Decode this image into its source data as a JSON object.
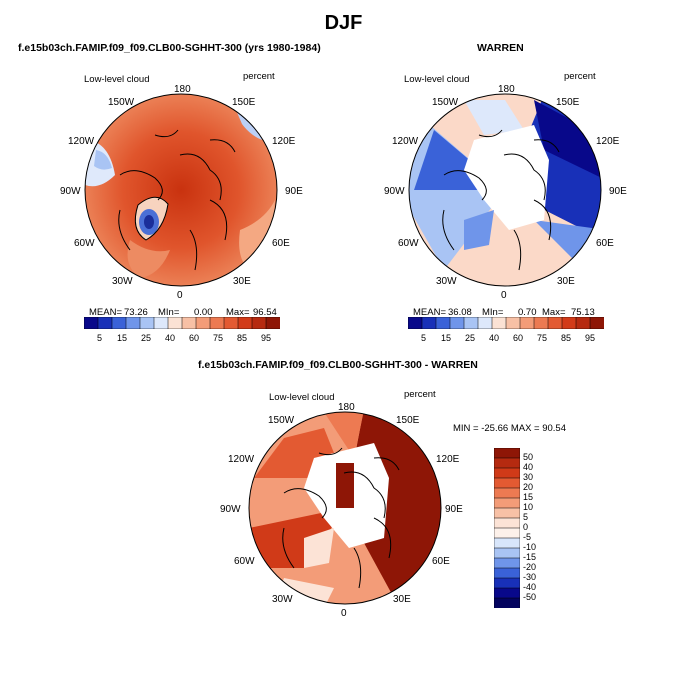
{
  "figure": {
    "season_title": "DJF"
  },
  "panels": [
    {
      "id": "model",
      "title": "f.e15b03ch.FAMIP.f09_f09.CLB00-SGHHT-300 (yrs 1980-1984)",
      "variable": "Low-level cloud",
      "units": "percent",
      "lon_labels": [
        "180",
        "150E",
        "120E",
        "90E",
        "60E",
        "30E",
        "0",
        "30W",
        "60W",
        "90W",
        "120W",
        "150W"
      ],
      "stats": {
        "mean_label": "MEAN=",
        "mean": "73.26",
        "min_label": "MIn=",
        "min": "0.00",
        "max_label": "Max=",
        "max": "96.54"
      }
    },
    {
      "id": "obs",
      "title": "WARREN",
      "variable": "Low-level cloud",
      "units": "percent",
      "lon_labels": [
        "180",
        "150E",
        "120E",
        "90E",
        "60E",
        "30E",
        "0",
        "30W",
        "60W",
        "90W",
        "120W",
        "150W"
      ],
      "stats": {
        "mean_label": "MEAN=",
        "mean": "36.08",
        "min_label": "MIn=",
        "min": "0.70",
        "max_label": "Max=",
        "max": "75.13"
      }
    },
    {
      "id": "diff",
      "title": "f.e15b03ch.FAMIP.f09_f09.CLB00-SGHHT-300 - WARREN",
      "variable": "Low-level cloud",
      "units": "percent",
      "lon_labels": [
        "180",
        "150E",
        "120E",
        "90E",
        "60E",
        "30E",
        "0",
        "30W",
        "60W",
        "90W",
        "120W",
        "150W"
      ],
      "stats_text": "MIN = -25.66  MAX =  90.54"
    }
  ],
  "colorbar_abs": {
    "levels": [
      "5",
      "15",
      "25",
      "40",
      "60",
      "75",
      "85",
      "95"
    ],
    "colors": [
      "#08088a",
      "#1830b8",
      "#3a62d8",
      "#6f95ea",
      "#a9c4f4",
      "#dde8fb",
      "#fbe2d4",
      "#f7c0a5",
      "#f39c78",
      "#ec7a52",
      "#e35a32",
      "#d23b19",
      "#b62a10",
      "#8e1606"
    ]
  },
  "colorbar_diff": {
    "levels": [
      "50",
      "40",
      "30",
      "20",
      "15",
      "10",
      "5",
      "0",
      "-5",
      "-10",
      "-15",
      "-20",
      "-30",
      "-40",
      "-50"
    ],
    "colors": [
      "#8e1606",
      "#b52a10",
      "#d03a18",
      "#e35a32",
      "#ed7a52",
      "#f39c78",
      "#f8c1a6",
      "#fce3d6",
      "#fdf1ea",
      "#d8e6fb",
      "#a9c4f4",
      "#6f95ea",
      "#3a62d8",
      "#1830b8",
      "#08088a",
      "#03035e"
    ]
  }
}
